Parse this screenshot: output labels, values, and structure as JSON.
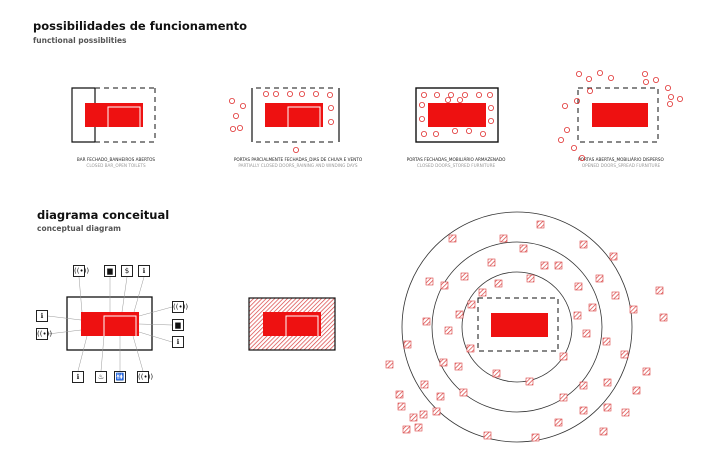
{
  "header": {
    "title": "possibilidades de funcionamento",
    "subtitle": "functional possiblities"
  },
  "scenarios": [
    {
      "label_pt": "BAR FECHADO_BANHEIROS ABERTOS",
      "label_en": "CLOSED BAR_OPEN TOILETS"
    },
    {
      "label_pt": "PORTAS PARCIALMENTE FECHADAS_DIAS DE CHUVA E VENTO",
      "label_en": "PARTIALLY CLOSED DOORS_RAINING AND WINDING DAYS"
    },
    {
      "label_pt": "PORTAS FECHADAS_MOBILIÁRIO ARMAZENADO",
      "label_en": "CLOSED DOORS_STORED FURNITURE"
    },
    {
      "label_pt": "PORTAS ABERTAS_MOBILIÁRIO DISPERSO",
      "label_en": "OPENED DOORS_SPREAD FURNITURE"
    }
  ],
  "concept": {
    "title": "diagrama conceitual",
    "subtitle": "conceptual diagram",
    "icons": {
      "wifi": "wifi-icon",
      "luggage": "luggage-icon",
      "money": "dollar-icon",
      "info": "info-icon",
      "food": "food-service-icon",
      "restroom": "restroom-icon"
    }
  },
  "colors": {
    "accent": "#ee1111",
    "hatch": "#d94040",
    "line": "#222222",
    "background": "#ffffff"
  }
}
